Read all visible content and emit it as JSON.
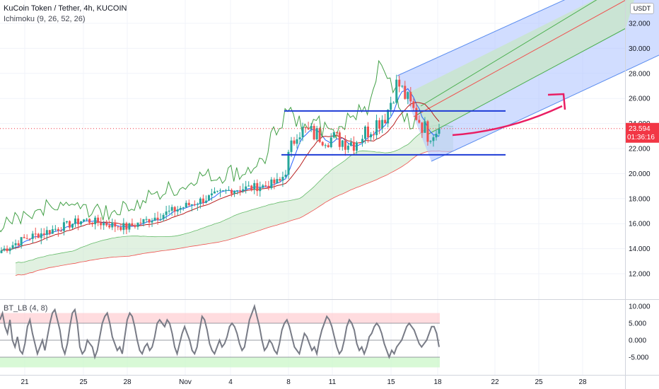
{
  "header": {
    "title": "KuCoin Token / Tether, 4h, KUCOIN",
    "indicator": "Ichimoku (9, 26, 52, 26)",
    "oscillator": "BT_LB (4, 8)",
    "currency": "USDT"
  },
  "price_tag": {
    "price": "23.594",
    "countdown": "01:36:16",
    "color": "#f23645"
  },
  "chart_data": [
    {
      "type": "line",
      "subtype": "candlestick",
      "title": "KuCoin Token / Tether, 4h, KUCOIN",
      "y_ticks": [
        "12.000",
        "14.000",
        "16.000",
        "18.000",
        "20.000",
        "22.000",
        "24.000",
        "26.000",
        "28.000",
        "30.000",
        "32.000"
      ],
      "x_ticks": [
        "21",
        "25",
        "28",
        "Nov",
        "4",
        "8",
        "11",
        "15",
        "18",
        "22",
        "25",
        "28"
      ],
      "ylim": [
        10.5,
        33.5
      ],
      "grid": true,
      "colors": {
        "up": "#26a69a",
        "down": "#ef5350",
        "conversion": "#2962ff",
        "base": "#b71c1c",
        "lagging": "#43a047",
        "cloud": "#c8e6c9"
      },
      "price_points": [
        [
          "Oct 18",
          13.8
        ],
        [
          "Oct 21",
          14.8
        ],
        [
          "Oct 25",
          16.3
        ],
        [
          "Oct 28",
          15.7
        ],
        [
          "Nov 1",
          17.4
        ],
        [
          "Nov 4",
          18.7
        ],
        [
          "Nov 6",
          19.0
        ],
        [
          "Nov 8",
          19.4
        ],
        [
          "Nov 9",
          23.5
        ],
        [
          "Nov 11",
          22.8
        ],
        [
          "Nov 13",
          22.5
        ],
        [
          "Nov 15",
          24.7
        ],
        [
          "Nov 15",
          27.3
        ],
        [
          "Nov 16",
          25.0
        ],
        [
          "Nov 17",
          23.2
        ],
        [
          "Nov 18",
          23.594
        ]
      ],
      "annotations": {
        "channel_top": 25.0,
        "channel_bottom": 21.5,
        "pitchfork": "ascending parallel channel with blue / green zones",
        "forecast_arrow": "up"
      }
    },
    {
      "type": "line",
      "title": "BT_LB (4, 8)",
      "y_ticks": [
        "10.000",
        "5.000",
        "0.000",
        "-5.000"
      ],
      "ylim": [
        -7,
        11
      ],
      "bands": {
        "upper": 5,
        "lower": -5,
        "upper_color": "#ffcdd2",
        "lower_color": "#c8f7c5"
      },
      "values": [
        6,
        8,
        4,
        2,
        6,
        0,
        -2,
        1,
        -3,
        -4,
        -1,
        4,
        6,
        2,
        -1,
        -4,
        -2,
        0,
        -3,
        1,
        5,
        8,
        9,
        6,
        3,
        -2,
        -4,
        -1,
        4,
        8,
        9,
        5,
        -2,
        -4,
        -3,
        0,
        -1,
        -2,
        -5,
        -3,
        1,
        5,
        7,
        8,
        5,
        1,
        -1,
        -3,
        -2,
        -4,
        1,
        6,
        8,
        7,
        4,
        0,
        -3,
        -4,
        -2,
        -1,
        -3,
        -2,
        1,
        5,
        6,
        5,
        4,
        6,
        5,
        2,
        -2,
        -4,
        -1,
        2,
        4,
        2,
        0,
        -3,
        -4,
        -2,
        3,
        7,
        6,
        3,
        -1,
        -3,
        -4,
        -2,
        0,
        -2,
        -1,
        1,
        4,
        5,
        4,
        2,
        -1,
        -3,
        -2,
        2,
        6,
        8,
        10,
        7,
        4,
        0,
        -3,
        -2,
        0,
        -1,
        -3,
        -4,
        -1,
        3,
        5,
        6,
        4,
        1,
        -2,
        -3,
        -4,
        -1,
        2,
        1,
        -1,
        -3,
        -2,
        -4,
        0,
        3,
        5,
        7,
        6,
        4,
        1,
        -2,
        -4,
        -3,
        0,
        4,
        6,
        5,
        3,
        -1,
        -3,
        -2,
        -4,
        -2,
        1,
        2,
        4,
        5,
        4,
        2,
        -1,
        -3,
        -5,
        -3,
        -4,
        -2,
        -1,
        0,
        2,
        4,
        5,
        4,
        3,
        1,
        -1,
        -2,
        -1,
        0,
        2,
        4,
        4,
        2,
        -2
      ]
    }
  ]
}
